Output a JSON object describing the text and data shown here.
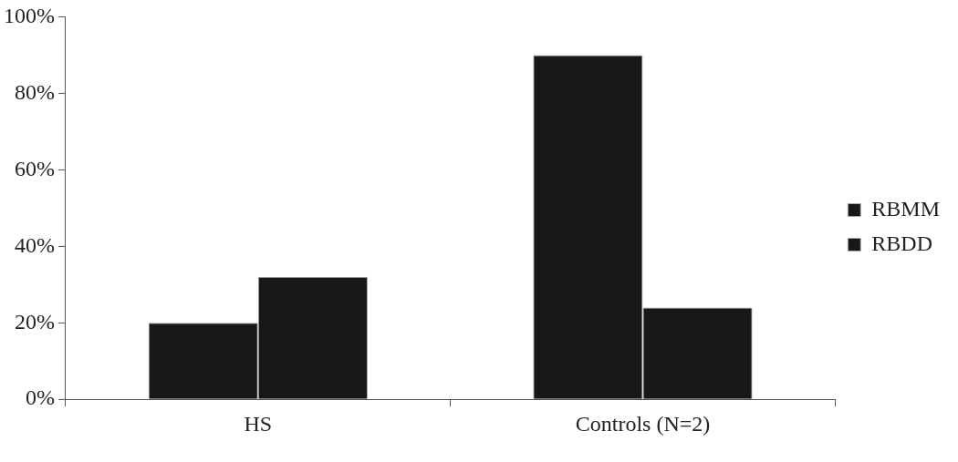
{
  "chart_data": {
    "type": "bar",
    "categories": [
      "HS",
      "Controls (N=2)"
    ],
    "series": [
      {
        "name": "RBMM",
        "color": "#181818",
        "values": [
          20,
          90
        ]
      },
      {
        "name": "RBDD",
        "color": "#181818",
        "values": [
          32,
          24
        ]
      }
    ],
    "ylim": [
      0,
      100
    ],
    "yticks": [
      {
        "value": 0,
        "label": "0%"
      },
      {
        "value": 20,
        "label": "20%"
      },
      {
        "value": 40,
        "label": "40%"
      },
      {
        "value": 60,
        "label": "60%"
      },
      {
        "value": 80,
        "label": "80%"
      },
      {
        "value": 100,
        "label": "100%"
      }
    ],
    "grid": false,
    "legend": "right"
  }
}
